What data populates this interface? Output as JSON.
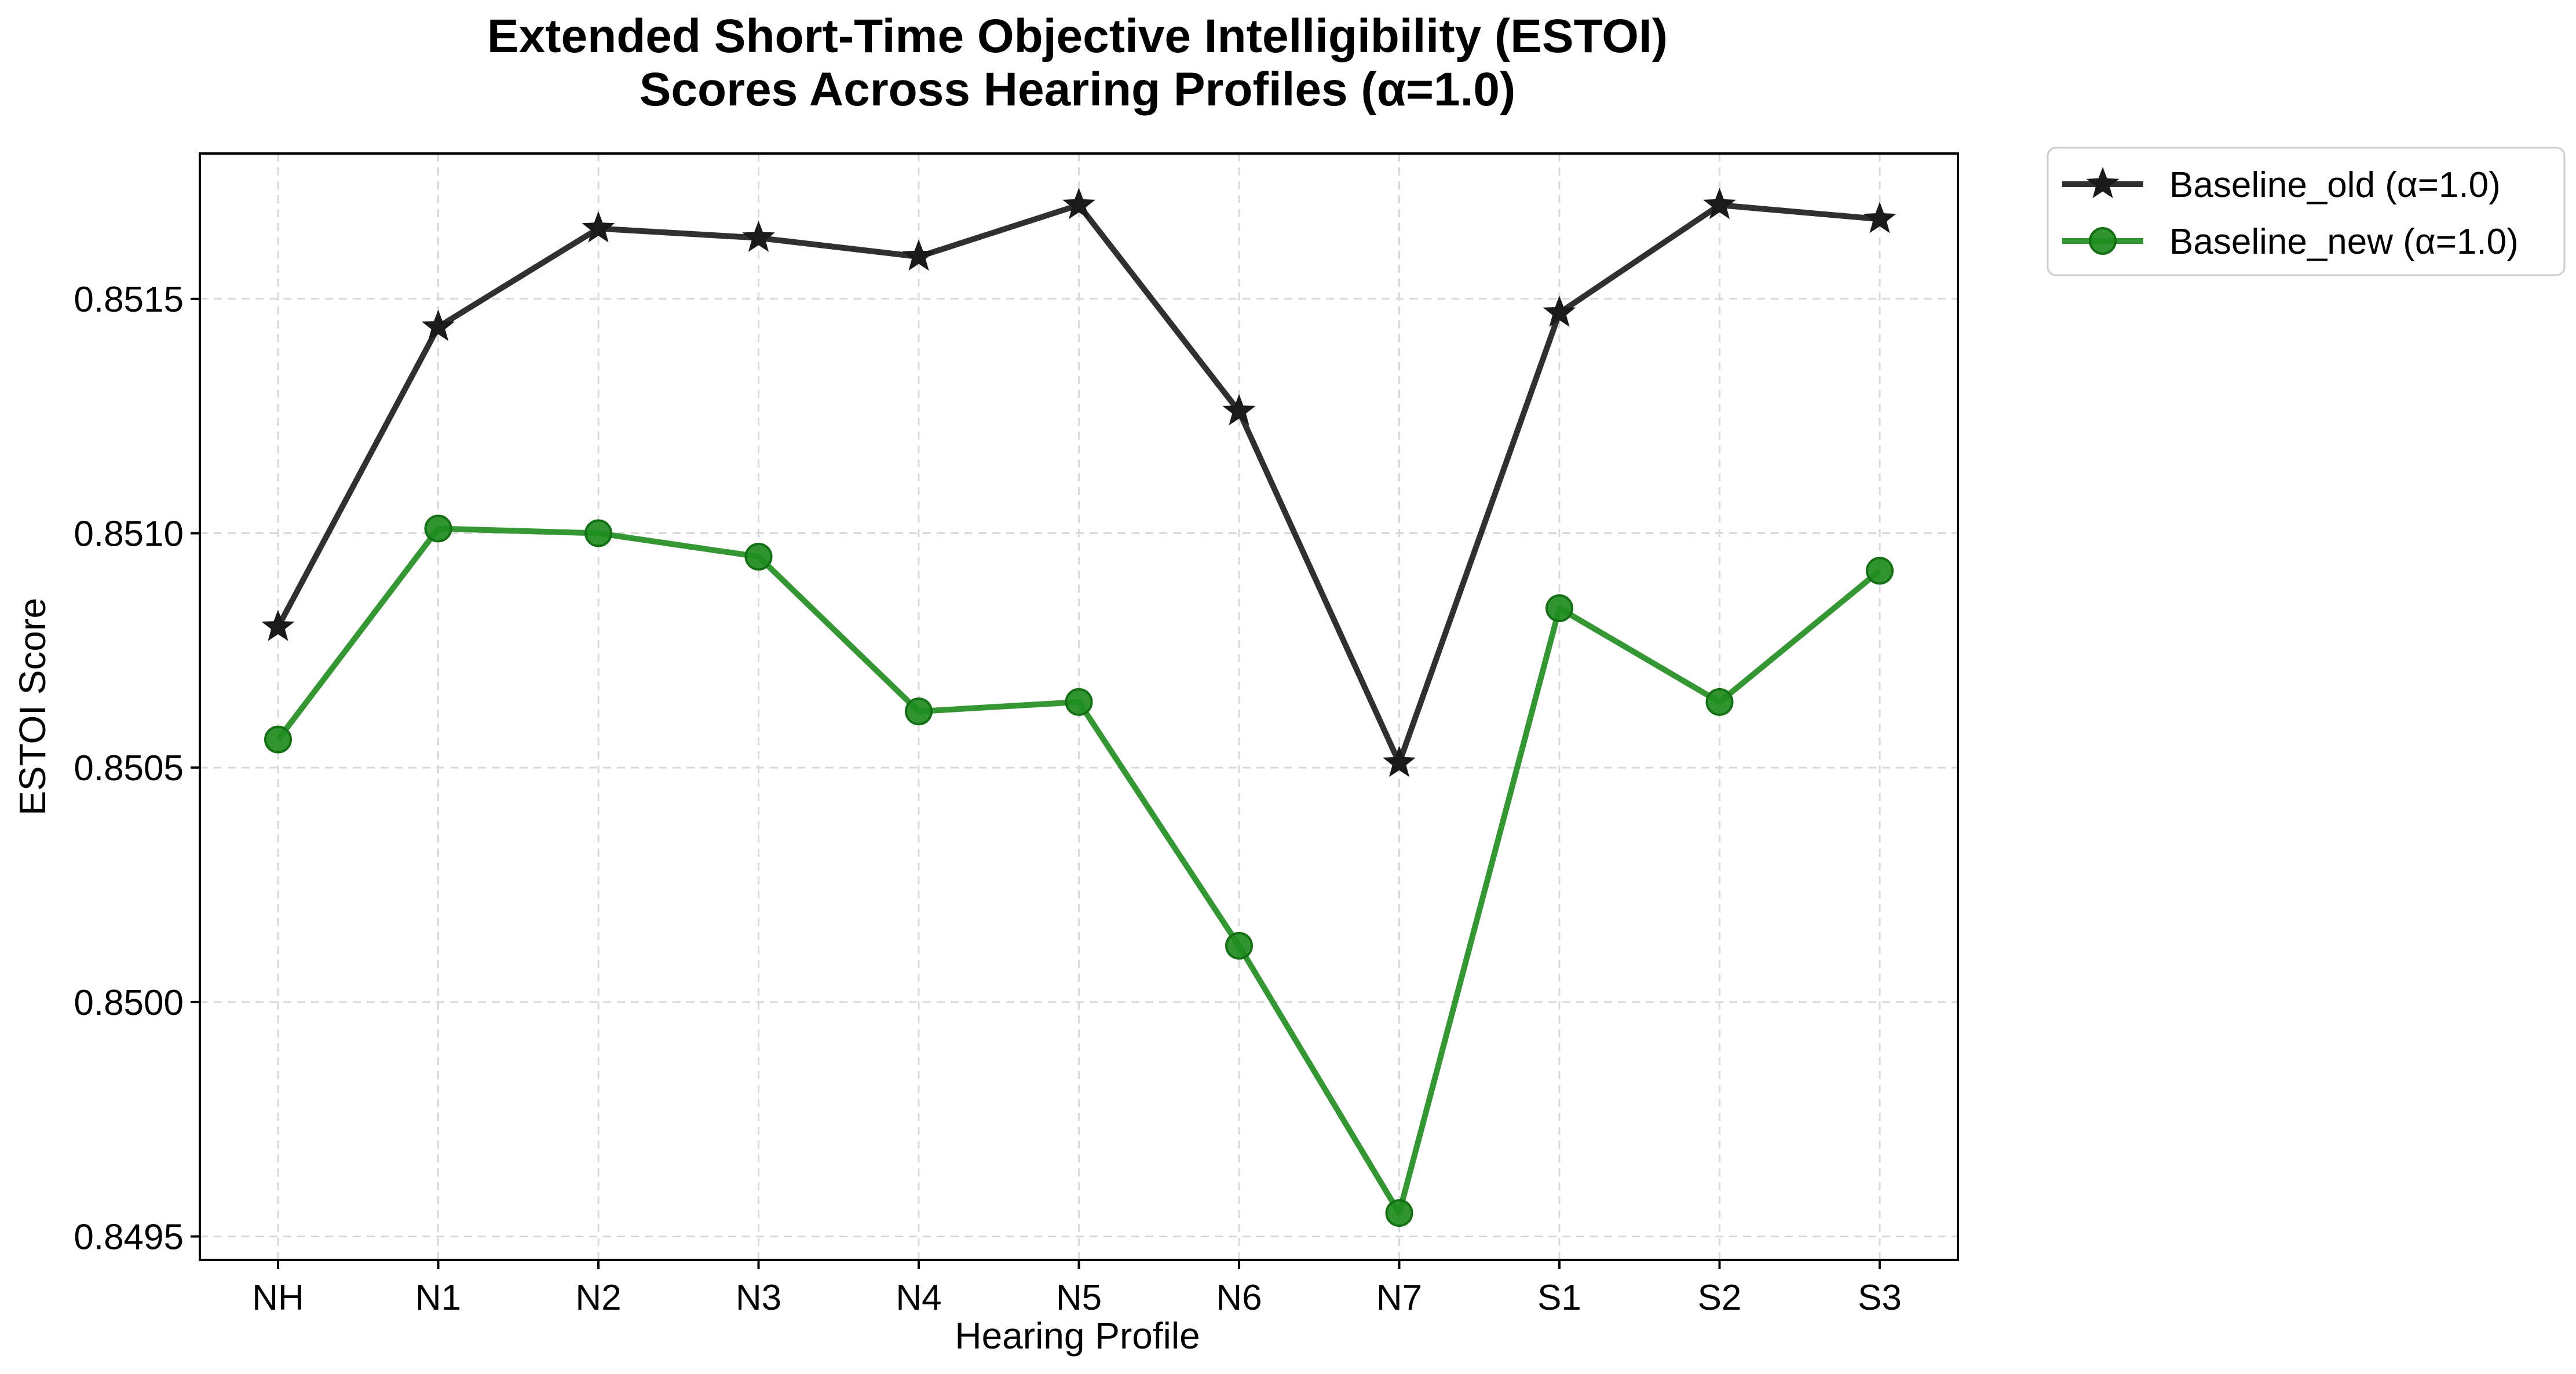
{
  "chart_data": {
    "type": "line",
    "title_lines": [
      "Extended Short-Time Objective Intelligibility (ESTOI)",
      "Scores Across Hearing Profiles (α=1.0)"
    ],
    "xlabel": "Hearing Profile",
    "ylabel": "ESTOI Score",
    "categories": [
      "NH",
      "N1",
      "N2",
      "N3",
      "N4",
      "N5",
      "N6",
      "N7",
      "S1",
      "S2",
      "S3"
    ],
    "yticks": [
      "0.8495",
      "0.8500",
      "0.8505",
      "0.8510",
      "0.8515"
    ],
    "ytick_values": [
      0.8495,
      0.85,
      0.8505,
      0.851,
      0.8515
    ],
    "ylim": [
      0.84945,
      0.85181
    ],
    "grid": true,
    "legend_position": "outside-top-right",
    "series": [
      {
        "name": "Baseline_old (α=1.0)",
        "color": "#1a1a1a",
        "marker": "star",
        "values": [
          0.8508,
          0.85144,
          0.85165,
          0.85163,
          0.85159,
          0.8517,
          0.85126,
          0.85051,
          0.85147,
          0.8517,
          0.85167
        ]
      },
      {
        "name": "Baseline_new (α=1.0)",
        "color": "#1e8c1e",
        "marker": "circle",
        "values": [
          0.85056,
          0.85101,
          0.851,
          0.85095,
          0.85062,
          0.85064,
          0.85012,
          0.84955,
          0.85084,
          0.85064,
          0.85092
        ]
      }
    ]
  }
}
